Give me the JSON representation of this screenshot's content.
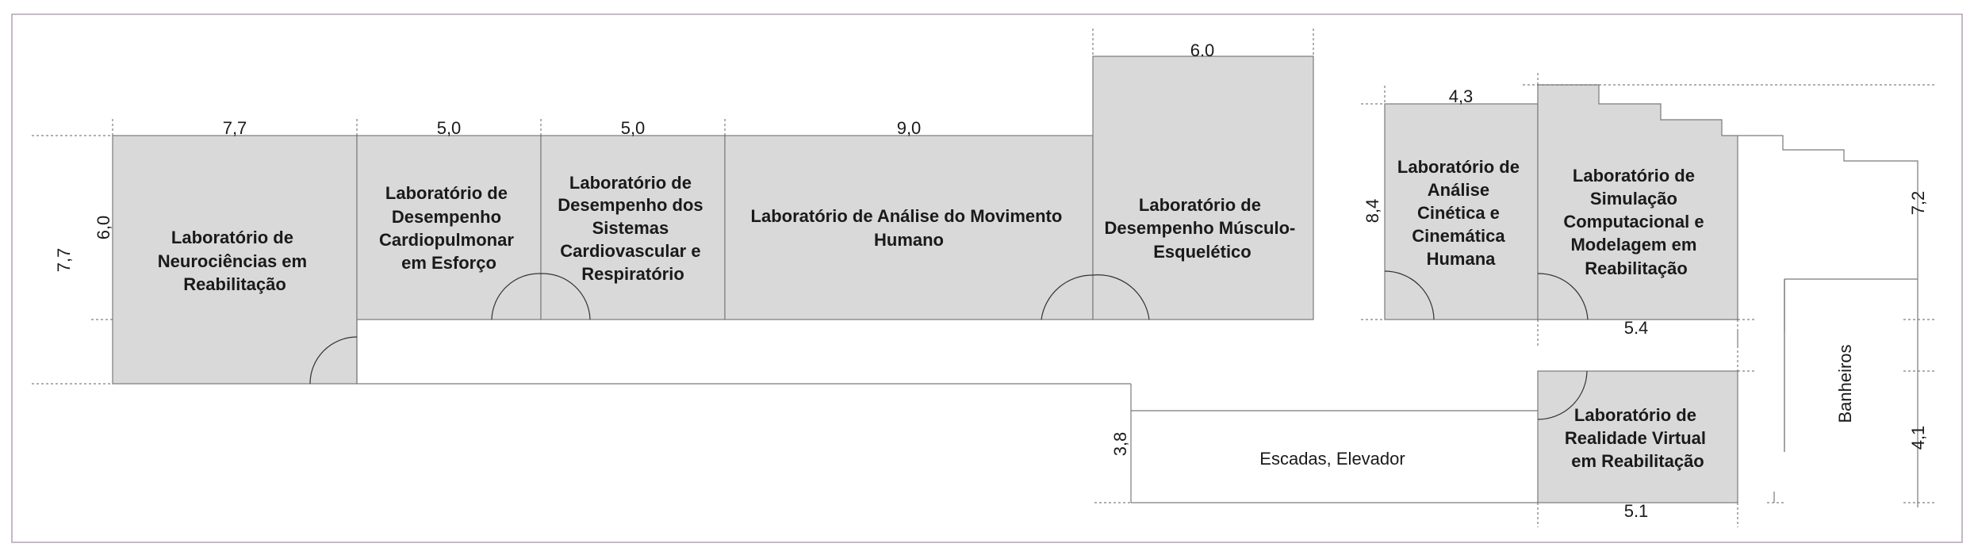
{
  "rooms": {
    "neuro": [
      "Laboratório de",
      "Neurociências em",
      "Reabilitação"
    ],
    "cardio": [
      "Laboratório de",
      "Desempenho",
      "Cardiopulmonar",
      "em Esforço"
    ],
    "sistemas": [
      "Laboratório de",
      "Desempenho dos",
      "Sistemas",
      "Cardiovascular e",
      "Respiratório"
    ],
    "movimento": [
      "Laboratório de Análise do Movimento",
      "Humano"
    ],
    "musculo": [
      "Laboratório de",
      "Desempenho Músculo-",
      "Esquelético"
    ],
    "cinetica": [
      "Laboratório de",
      "Análise",
      "Cinética e",
      "Cinemática",
      "Humana"
    ],
    "simulacao": [
      "Laboratório de",
      "Simulação",
      "Computacional e",
      "Modelagem em",
      "Reabilitação"
    ],
    "realidade": [
      "Laboratório de",
      "Realidade Virtual",
      "em Reabilitação"
    ]
  },
  "areas": {
    "escadas": "Escadas, Elevador",
    "banheiros": "Banheiros"
  },
  "dimensions": {
    "neuro_width": "7,7",
    "cardio_width": "5,0",
    "sistemas_width": "5,0",
    "movimento_width": "9,0",
    "musculo_width": "6.0",
    "cinetica_width": "4,3",
    "simulacao_width": "5.4",
    "realidade_width": "5.1",
    "left_outer_height": "7,7",
    "left_inner_height": "6,0",
    "cinetica_height": "8,4",
    "right_upper_height": "7,2",
    "right_lower_height": "4,1",
    "escadas_height": "3,8"
  }
}
